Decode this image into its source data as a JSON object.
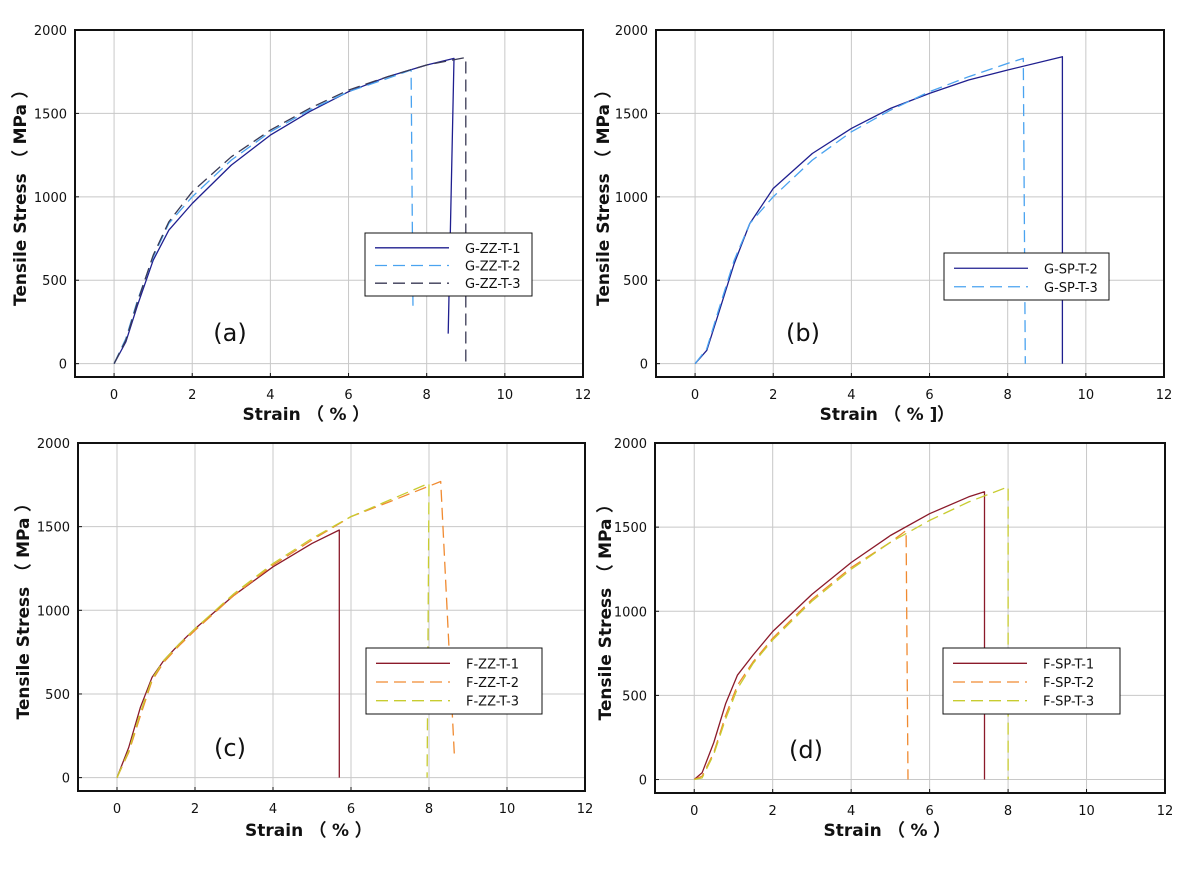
{
  "figure": "Tensile stress-strain curves",
  "colors": {
    "navy": "#1f1f8f",
    "lightblue": "#4aa3f0",
    "darkgray": "#3a3a55",
    "darkred": "#8b1a2a",
    "orange": "#f08a30",
    "yellowgreen": "#c8cc30",
    "grid": "#c8c8c8"
  },
  "chart_data": [
    {
      "type": "line",
      "panel_label": "(a)",
      "xlabel": "Strain （ % ）",
      "ylabel": "Tensile Stress （ MPa ）",
      "xlim": [
        -1,
        12
      ],
      "ylim": [
        -80,
        2000
      ],
      "xticks": [
        0,
        2,
        4,
        6,
        8,
        10,
        12
      ],
      "yticks": [
        0,
        500,
        1000,
        1500,
        2000
      ],
      "legend_position": "center-right",
      "series": [
        {
          "name": "G-ZZ-T-1",
          "style": "solid",
          "color": "#1f1f8f",
          "x": [
            0,
            0.3,
            0.6,
            1.0,
            1.4,
            2.0,
            3.0,
            4.0,
            5.0,
            6.0,
            7.0,
            8.0,
            8.7,
            8.55
          ],
          "y": [
            0,
            130,
            350,
            620,
            800,
            960,
            1190,
            1370,
            1510,
            1630,
            1720,
            1790,
            1830,
            180
          ]
        },
        {
          "name": "G-ZZ-T-2",
          "style": "dashed",
          "color": "#4aa3f0",
          "x": [
            0,
            0.3,
            0.6,
            1.0,
            1.4,
            2.0,
            3.0,
            4.0,
            5.0,
            6.0,
            7.0,
            7.6,
            7.65
          ],
          "y": [
            0,
            150,
            380,
            640,
            840,
            1000,
            1220,
            1390,
            1520,
            1630,
            1710,
            1760,
            320
          ]
        },
        {
          "name": "G-ZZ-T-3",
          "style": "dashed",
          "color": "#3a3a55",
          "x": [
            0,
            0.3,
            0.6,
            1.0,
            1.4,
            2.0,
            3.0,
            4.0,
            5.0,
            6.0,
            7.0,
            8.0,
            9.0,
            9.0
          ],
          "y": [
            0,
            140,
            370,
            650,
            850,
            1030,
            1240,
            1400,
            1530,
            1640,
            1720,
            1790,
            1835,
            -5
          ]
        }
      ]
    },
    {
      "type": "line",
      "panel_label": "(b)",
      "xlabel": "Strain （ % ]）",
      "ylabel": "Tensile Stress （ MPa ）",
      "xlim": [
        -1,
        12
      ],
      "ylim": [
        -80,
        2000
      ],
      "xticks": [
        0,
        2,
        4,
        6,
        8,
        10,
        12
      ],
      "yticks": [
        0,
        500,
        1000,
        1500,
        2000
      ],
      "legend_position": "center-right",
      "series": [
        {
          "name": "G-SP-T-2",
          "style": "solid",
          "color": "#1f1f8f",
          "x": [
            0,
            0.3,
            0.6,
            1.0,
            1.4,
            2.0,
            3.0,
            4.0,
            5.0,
            6.0,
            7.0,
            8.0,
            9.4,
            9.4
          ],
          "y": [
            0,
            80,
            300,
            600,
            840,
            1050,
            1260,
            1410,
            1530,
            1620,
            1700,
            1760,
            1840,
            0
          ]
        },
        {
          "name": "G-SP-T-3",
          "style": "dashed",
          "color": "#4aa3f0",
          "x": [
            0,
            0.3,
            0.6,
            1.0,
            1.4,
            2.0,
            3.0,
            4.0,
            5.0,
            6.0,
            7.0,
            8.0,
            8.4,
            8.45
          ],
          "y": [
            0,
            90,
            320,
            620,
            840,
            1000,
            1220,
            1390,
            1520,
            1630,
            1720,
            1800,
            1830,
            0
          ]
        }
      ]
    },
    {
      "type": "line",
      "panel_label": "(c)",
      "xlabel": "Strain （ % ）",
      "ylabel": "Tensile Stress （ MPa ）",
      "xlim": [
        -1,
        12
      ],
      "ylim": [
        -80,
        2000
      ],
      "xticks": [
        0,
        2,
        4,
        6,
        8,
        10,
        12
      ],
      "yticks": [
        0,
        500,
        1000,
        1500,
        2000
      ],
      "legend_position": "center-right",
      "series": [
        {
          "name": "F-ZZ-T-1",
          "style": "solid",
          "color": "#8b1a2a",
          "x": [
            0,
            0.3,
            0.6,
            0.9,
            1.2,
            1.6,
            2.0,
            3.0,
            4.0,
            5.0,
            5.7,
            5.7
          ],
          "y": [
            0,
            180,
            420,
            600,
            700,
            800,
            890,
            1090,
            1260,
            1400,
            1480,
            0
          ]
        },
        {
          "name": "F-ZZ-T-2",
          "style": "dashed",
          "color": "#f08a30",
          "x": [
            0,
            0.3,
            0.6,
            0.9,
            1.2,
            1.6,
            2.0,
            3.0,
            4.0,
            5.0,
            6.0,
            7.0,
            8.3,
            8.65
          ],
          "y": [
            0,
            150,
            370,
            580,
            690,
            790,
            880,
            1090,
            1270,
            1420,
            1560,
            1650,
            1770,
            130
          ]
        },
        {
          "name": "F-ZZ-T-3",
          "style": "dashed",
          "color": "#c8cc30",
          "x": [
            0,
            0.3,
            0.6,
            0.9,
            1.2,
            1.6,
            2.0,
            3.0,
            4.0,
            5.0,
            6.0,
            7.0,
            8.0,
            7.95
          ],
          "y": [
            0,
            160,
            390,
            590,
            700,
            800,
            890,
            1100,
            1280,
            1430,
            1560,
            1660,
            1760,
            0
          ]
        }
      ]
    },
    {
      "type": "line",
      "panel_label": "(d)",
      "xlabel": "Strain （ % ）",
      "ylabel": "Tensile Stress （ MPa ）",
      "xlim": [
        -1,
        12
      ],
      "ylim": [
        -80,
        2000
      ],
      "xticks": [
        0,
        2,
        4,
        6,
        8,
        10,
        12
      ],
      "yticks": [
        0,
        500,
        1000,
        1500,
        2000
      ],
      "legend_position": "center-right",
      "series": [
        {
          "name": "F-SP-T-1",
          "style": "solid",
          "color": "#8b1a2a",
          "x": [
            0,
            0.2,
            0.5,
            0.8,
            1.1,
            1.5,
            2.0,
            3.0,
            4.0,
            5.0,
            6.0,
            7.0,
            7.4,
            7.4
          ],
          "y": [
            0,
            40,
            220,
            450,
            620,
            740,
            880,
            1100,
            1290,
            1450,
            1580,
            1680,
            1710,
            0
          ]
        },
        {
          "name": "F-SP-T-2",
          "style": "dashed",
          "color": "#f08a30",
          "x": [
            0,
            0.2,
            0.5,
            0.8,
            1.1,
            1.5,
            2.0,
            3.0,
            4.0,
            5.0,
            5.4,
            5.45
          ],
          "y": [
            0,
            20,
            160,
            380,
            560,
            700,
            840,
            1070,
            1260,
            1410,
            1480,
            0
          ]
        },
        {
          "name": "F-SP-T-3",
          "style": "dashed",
          "color": "#c8cc30",
          "x": [
            0,
            0.2,
            0.5,
            0.8,
            1.1,
            1.5,
            2.0,
            3.0,
            4.0,
            5.0,
            6.0,
            7.0,
            8.0,
            8.0
          ],
          "y": [
            0,
            10,
            150,
            360,
            540,
            690,
            830,
            1060,
            1250,
            1410,
            1540,
            1650,
            1740,
            0
          ]
        }
      ]
    }
  ]
}
